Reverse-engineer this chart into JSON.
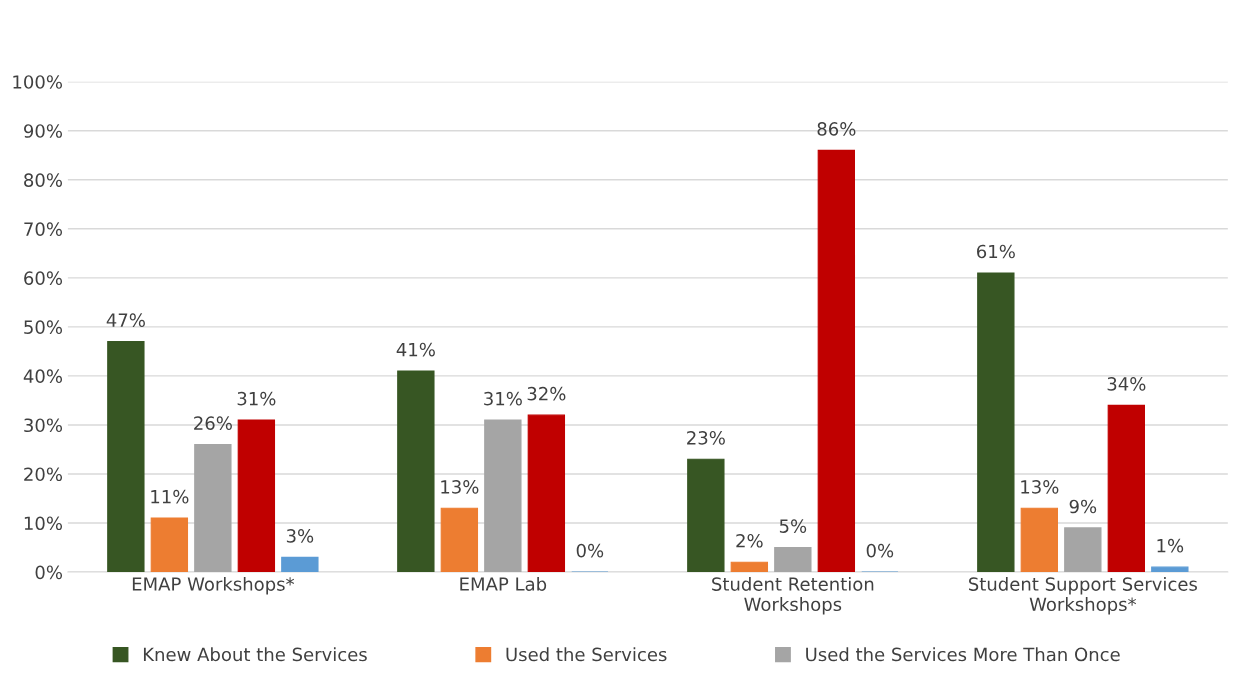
{
  "chart_data": {
    "type": "bar",
    "categories": [
      "EMAP Workshops*",
      "EMAP Lab",
      "Student Retention\nWorkshops",
      "Student Support Services\nWorkshops*"
    ],
    "series": [
      {
        "name": "Knew About the Services",
        "color": "#375623",
        "values": [
          47,
          41,
          23,
          61
        ],
        "value_labels": [
          "47%",
          "41%",
          "23%",
          "61%"
        ]
      },
      {
        "name": "Used the Services",
        "color": "#ed7d31",
        "values": [
          11,
          13,
          2,
          13
        ],
        "value_labels": [
          "11%",
          "13%",
          "2%",
          "13%"
        ]
      },
      {
        "name": "Used the Services More Than Once",
        "color": "#a5a5a5",
        "values": [
          26,
          31,
          5,
          9
        ],
        "value_labels": [
          "26%",
          "31%",
          "5%",
          "9%"
        ]
      },
      {
        "color": "#c00000",
        "values": [
          31,
          32,
          86,
          34
        ],
        "value_labels": [
          "31%",
          "32%",
          "86%",
          "34%"
        ]
      },
      {
        "color": "#5b9bd5",
        "values": [
          3,
          0,
          0,
          1
        ],
        "value_labels": [
          "3%",
          "0%",
          "0%",
          "1%"
        ]
      }
    ],
    "ylim": [
      0,
      100
    ],
    "yticks": [
      {
        "value": 0,
        "label": "0%"
      },
      {
        "value": 10,
        "label": "10%"
      },
      {
        "value": 20,
        "label": "20%"
      },
      {
        "value": 30,
        "label": "30%"
      },
      {
        "value": 40,
        "label": "40%"
      },
      {
        "value": 50,
        "label": "50%"
      },
      {
        "value": 60,
        "label": "60%"
      },
      {
        "value": 70,
        "label": "70%"
      },
      {
        "value": 80,
        "label": "80%"
      },
      {
        "value": 90,
        "label": "90%"
      },
      {
        "value": 100,
        "label": "100%"
      }
    ],
    "grid": "y",
    "legend": "bottom"
  }
}
